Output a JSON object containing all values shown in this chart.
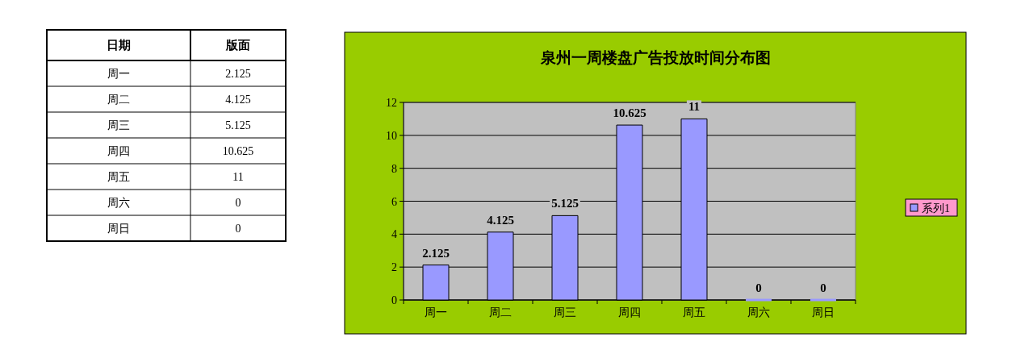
{
  "chart_data": {
    "type": "bar",
    "title": "泉州一周楼盘广告投放时间分布图",
    "categories": [
      "周一",
      "周二",
      "周三",
      "周四",
      "周五",
      "周六",
      "周日"
    ],
    "series": [
      {
        "name": "系列1",
        "color": "#9999ff",
        "values": [
          2.125,
          4.125,
          5.125,
          10.625,
          11,
          0,
          0
        ],
        "value_labels": [
          "2.125",
          "4.125",
          "5.125",
          "10.625",
          "11",
          "0",
          "0"
        ]
      }
    ],
    "ylim": [
      0,
      12
    ],
    "yticks": [
      0,
      2,
      4,
      6,
      8,
      10,
      12
    ],
    "grid": "y",
    "legend": "right",
    "annotations": [
      "日期",
      "版面"
    ]
  }
}
